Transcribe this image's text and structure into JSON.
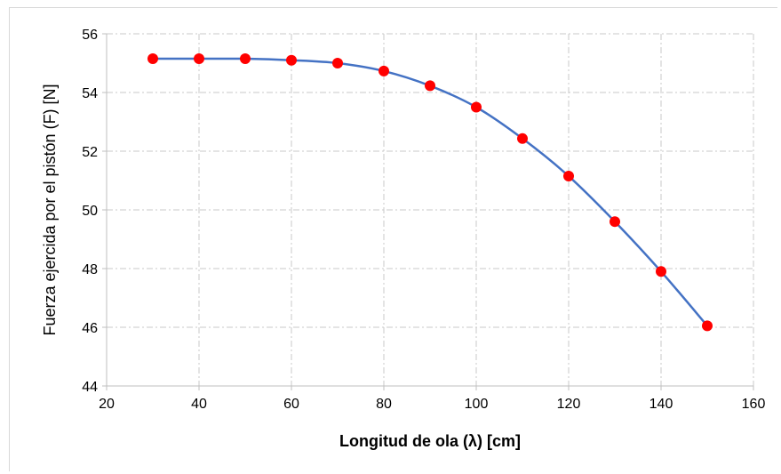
{
  "chart_data": {
    "type": "line",
    "xlabel": "Longitud de ola (λ) [cm]",
    "ylabel": "Fuerza ejercida por el pistón (F) [N]",
    "xlim": [
      20,
      160
    ],
    "ylim": [
      44,
      56
    ],
    "x_ticks": [
      20,
      40,
      60,
      80,
      100,
      120,
      140,
      160
    ],
    "y_ticks": [
      44,
      46,
      48,
      50,
      52,
      54,
      56
    ],
    "grid": true,
    "legend": "none",
    "series": [
      {
        "x": [
          30,
          40,
          50,
          60,
          70,
          80,
          90,
          100,
          110,
          120,
          130,
          140,
          150
        ],
        "y": [
          55.15,
          55.15,
          55.15,
          55.1,
          55.0,
          54.73,
          54.23,
          53.5,
          52.43,
          51.15,
          49.6,
          47.9,
          46.05
        ],
        "line_color": "#4472c4",
        "marker_color": "#ff0000",
        "marker": "circle",
        "smooth": true
      }
    ]
  }
}
